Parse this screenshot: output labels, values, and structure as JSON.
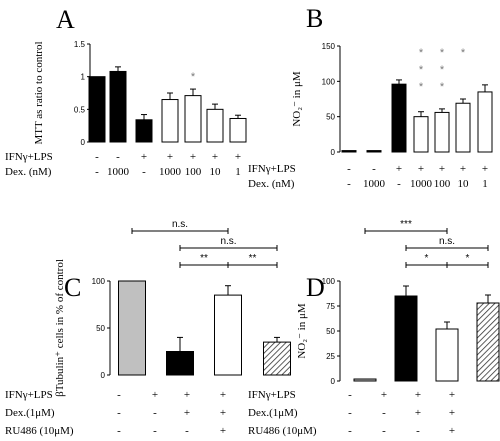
{
  "figure": {
    "panels": [
      "A",
      "B",
      "C",
      "D"
    ]
  },
  "chart_data": [
    {
      "panel": "A",
      "type": "bar",
      "ylabel": "MTT as ratio to control",
      "ylim": [
        0,
        1.5
      ],
      "yticks": [
        "0",
        "0.5",
        "1",
        "1.5"
      ],
      "values": [
        1.0,
        1.08,
        0.34,
        0.65,
        0.71,
        0.5,
        0.36
      ],
      "errors": [
        0.0,
        0.07,
        0.08,
        0.1,
        0.1,
        0.08,
        0.05
      ],
      "fills": [
        "#000000",
        "#000000",
        "#000000",
        "#ffffff",
        "#ffffff",
        "#ffffff",
        "#ffffff"
      ],
      "rows": [
        {
          "label": "IFNγ+LPS",
          "cells": [
            "-",
            "-",
            "+",
            "+",
            "+",
            "+",
            "+"
          ]
        },
        {
          "label": "Dex. (nM)",
          "cells": [
            "-",
            "1000",
            "-",
            "1000",
            "100",
            "10",
            "1"
          ]
        }
      ],
      "annotations": [
        {
          "bar": 4,
          "text": "*",
          "above": 0.3
        }
      ]
    },
    {
      "panel": "B",
      "type": "bar",
      "ylabel": "NO₂⁻ in μM",
      "ylim": [
        0,
        150
      ],
      "yticks": [
        "0",
        "50",
        "100",
        "150"
      ],
      "values": [
        2,
        2,
        96,
        50,
        56,
        69,
        85
      ],
      "errors": [
        0,
        0,
        6,
        7,
        5,
        6,
        10
      ],
      "fills": [
        "#000000",
        "#000000",
        "#000000",
        "#ffffff",
        "#ffffff",
        "#ffffff",
        "#ffffff"
      ],
      "rows": [
        {
          "label": "IFNγ+LPS",
          "cells": [
            "-",
            "-",
            "+",
            "+",
            "+",
            "+",
            "+"
          ]
        },
        {
          "label": "Dex. (nM)",
          "cells": [
            "-",
            "1000",
            "-",
            "1000",
            "100",
            "10",
            "1"
          ]
        }
      ],
      "stars": [
        {
          "bar": 3,
          "values": [
            "*",
            "*",
            "*"
          ]
        },
        {
          "bar": 4,
          "values": [
            "*",
            "*",
            "*"
          ]
        },
        {
          "bar": 5,
          "values": [
            "*"
          ]
        }
      ]
    },
    {
      "panel": "C",
      "type": "bar",
      "ylabel": "βTubulin⁺ cells in % of control",
      "ylim": [
        0,
        100
      ],
      "yticks": [
        "0",
        "50",
        "100"
      ],
      "values": [
        100,
        25,
        85,
        35
      ],
      "errors": [
        0,
        15,
        10,
        5
      ],
      "fills": [
        "#c0c0c0",
        "#000000",
        "#ffffff",
        "hatch"
      ],
      "rows": [
        {
          "label": "IFNγ+LPS",
          "cells": [
            "-",
            "+",
            "+",
            "+"
          ]
        },
        {
          "label": "Dex.(1μM)",
          "cells": [
            "-",
            "-",
            "+",
            "+"
          ]
        },
        {
          "label": "RU486 (10μM)",
          "cells": [
            "-",
            "-",
            "-",
            "+"
          ]
        }
      ],
      "brackets": [
        {
          "from": 0,
          "to": 2,
          "text": "n.s.",
          "level": 3
        },
        {
          "from": 1,
          "to": 3,
          "text": "n.s.",
          "level": 2
        },
        {
          "from": 1,
          "to": 2,
          "text": "**",
          "level": 1
        },
        {
          "from": 2,
          "to": 3,
          "text": "**",
          "level": 1
        }
      ]
    },
    {
      "panel": "D",
      "type": "bar",
      "ylabel": "NO₂⁻ in μM",
      "ylim": [
        0,
        100
      ],
      "yticks": [
        "0",
        "25",
        "50",
        "75",
        "100"
      ],
      "values": [
        2,
        85,
        52,
        78
      ],
      "errors": [
        0,
        10,
        7,
        8
      ],
      "fills": [
        "#c0c0c0",
        "#000000",
        "#ffffff",
        "hatch"
      ],
      "rows": [
        {
          "label": "IFNγ+LPS",
          "cells": [
            "-",
            "+",
            "+",
            "+"
          ]
        },
        {
          "label": "Dex.(1μM)",
          "cells": [
            "-",
            "-",
            "+",
            "+"
          ]
        },
        {
          "label": "RU486 (10μM)",
          "cells": [
            "-",
            "-",
            "-",
            "+"
          ]
        }
      ],
      "brackets": [
        {
          "from": 0,
          "to": 2,
          "text": "***",
          "level": 3
        },
        {
          "from": 1,
          "to": 3,
          "text": "n.s.",
          "level": 2
        },
        {
          "from": 1,
          "to": 2,
          "text": "*",
          "level": 1
        },
        {
          "from": 2,
          "to": 3,
          "text": "*",
          "level": 1
        }
      ]
    }
  ]
}
